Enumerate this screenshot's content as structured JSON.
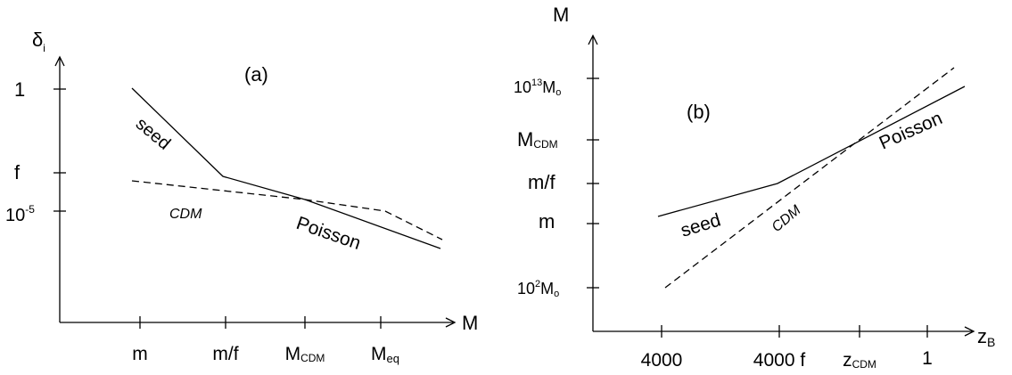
{
  "panel_a": {
    "label": "(a)",
    "y_axis_label": "δ",
    "y_axis_label_sub": "i",
    "x_axis_label": "M",
    "y_ticks": [
      {
        "main": "1",
        "sup": ""
      },
      {
        "main": "f",
        "sup": ""
      },
      {
        "main": "10",
        "sup": "-5"
      }
    ],
    "x_ticks": [
      {
        "main": "m",
        "sub": ""
      },
      {
        "main": "m/f",
        "sub": ""
      },
      {
        "main": "M",
        "sub": "CDM"
      },
      {
        "main": "M",
        "sub": "eq"
      }
    ],
    "curve_labels": {
      "seed": "seed",
      "cdm": "CDM",
      "poisson": "Poisson"
    }
  },
  "panel_b": {
    "label": "(b)",
    "y_axis_label": "M",
    "x_axis_label": "z",
    "x_axis_label_sub": "B",
    "y_ticks": [
      {
        "main": "10",
        "sup": "13",
        "tail": "M",
        "tail_sub": "o"
      },
      {
        "main": "M",
        "sub": "CDM"
      },
      {
        "main": "m/f"
      },
      {
        "main": "m"
      },
      {
        "main": "10",
        "sup": "2",
        "tail": "M",
        "tail_sub": "o"
      }
    ],
    "x_ticks": [
      {
        "main": "4000"
      },
      {
        "main": "4000 f"
      },
      {
        "main": "z",
        "sub": "CDM"
      },
      {
        "main": "1"
      }
    ],
    "curve_labels": {
      "seed": "seed",
      "cdm": "CDM",
      "poisson": "Poisson"
    }
  }
}
